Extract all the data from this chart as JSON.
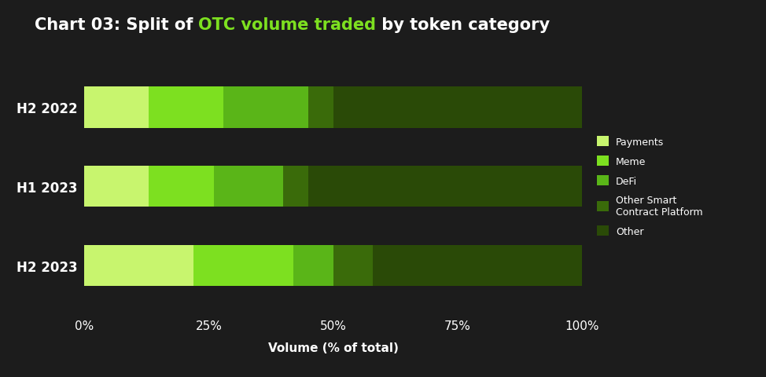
{
  "categories": [
    "H2 2023",
    "H1 2023",
    "H2 2022"
  ],
  "segments": {
    "Payments": [
      22,
      13,
      13
    ],
    "Meme": [
      20,
      13,
      15
    ],
    "DeFi": [
      8,
      14,
      17
    ],
    "Other Smart\nContract Platform": [
      8,
      5,
      5
    ],
    "Other": [
      42,
      55,
      50
    ]
  },
  "colors": {
    "Payments": "#c8f56e",
    "Meme": "#7de020",
    "DeFi": "#5ab518",
    "Other Smart\nContract Platform": "#3a6b0a",
    "Other": "#2a4a07"
  },
  "legend_labels": [
    "Payments",
    "Meme",
    "DeFi",
    "Other Smart\nContract Platform",
    "Other"
  ],
  "title_parts": {
    "prefix": "Chart 03: Split of ",
    "highlight": "OTC volume traded",
    "suffix": " by token category"
  },
  "xlabel": "Volume (% of total)",
  "xtick_labels": [
    "0%",
    "25%",
    "50%",
    "75%",
    "100%"
  ],
  "xtick_values": [
    0,
    25,
    50,
    75,
    100
  ],
  "background_color": "#1c1c1c",
  "text_color": "#ffffff",
  "title_highlight_color": "#7de020",
  "bar_height": 0.52,
  "figsize": [
    9.74,
    4.81
  ],
  "dpi": 100
}
